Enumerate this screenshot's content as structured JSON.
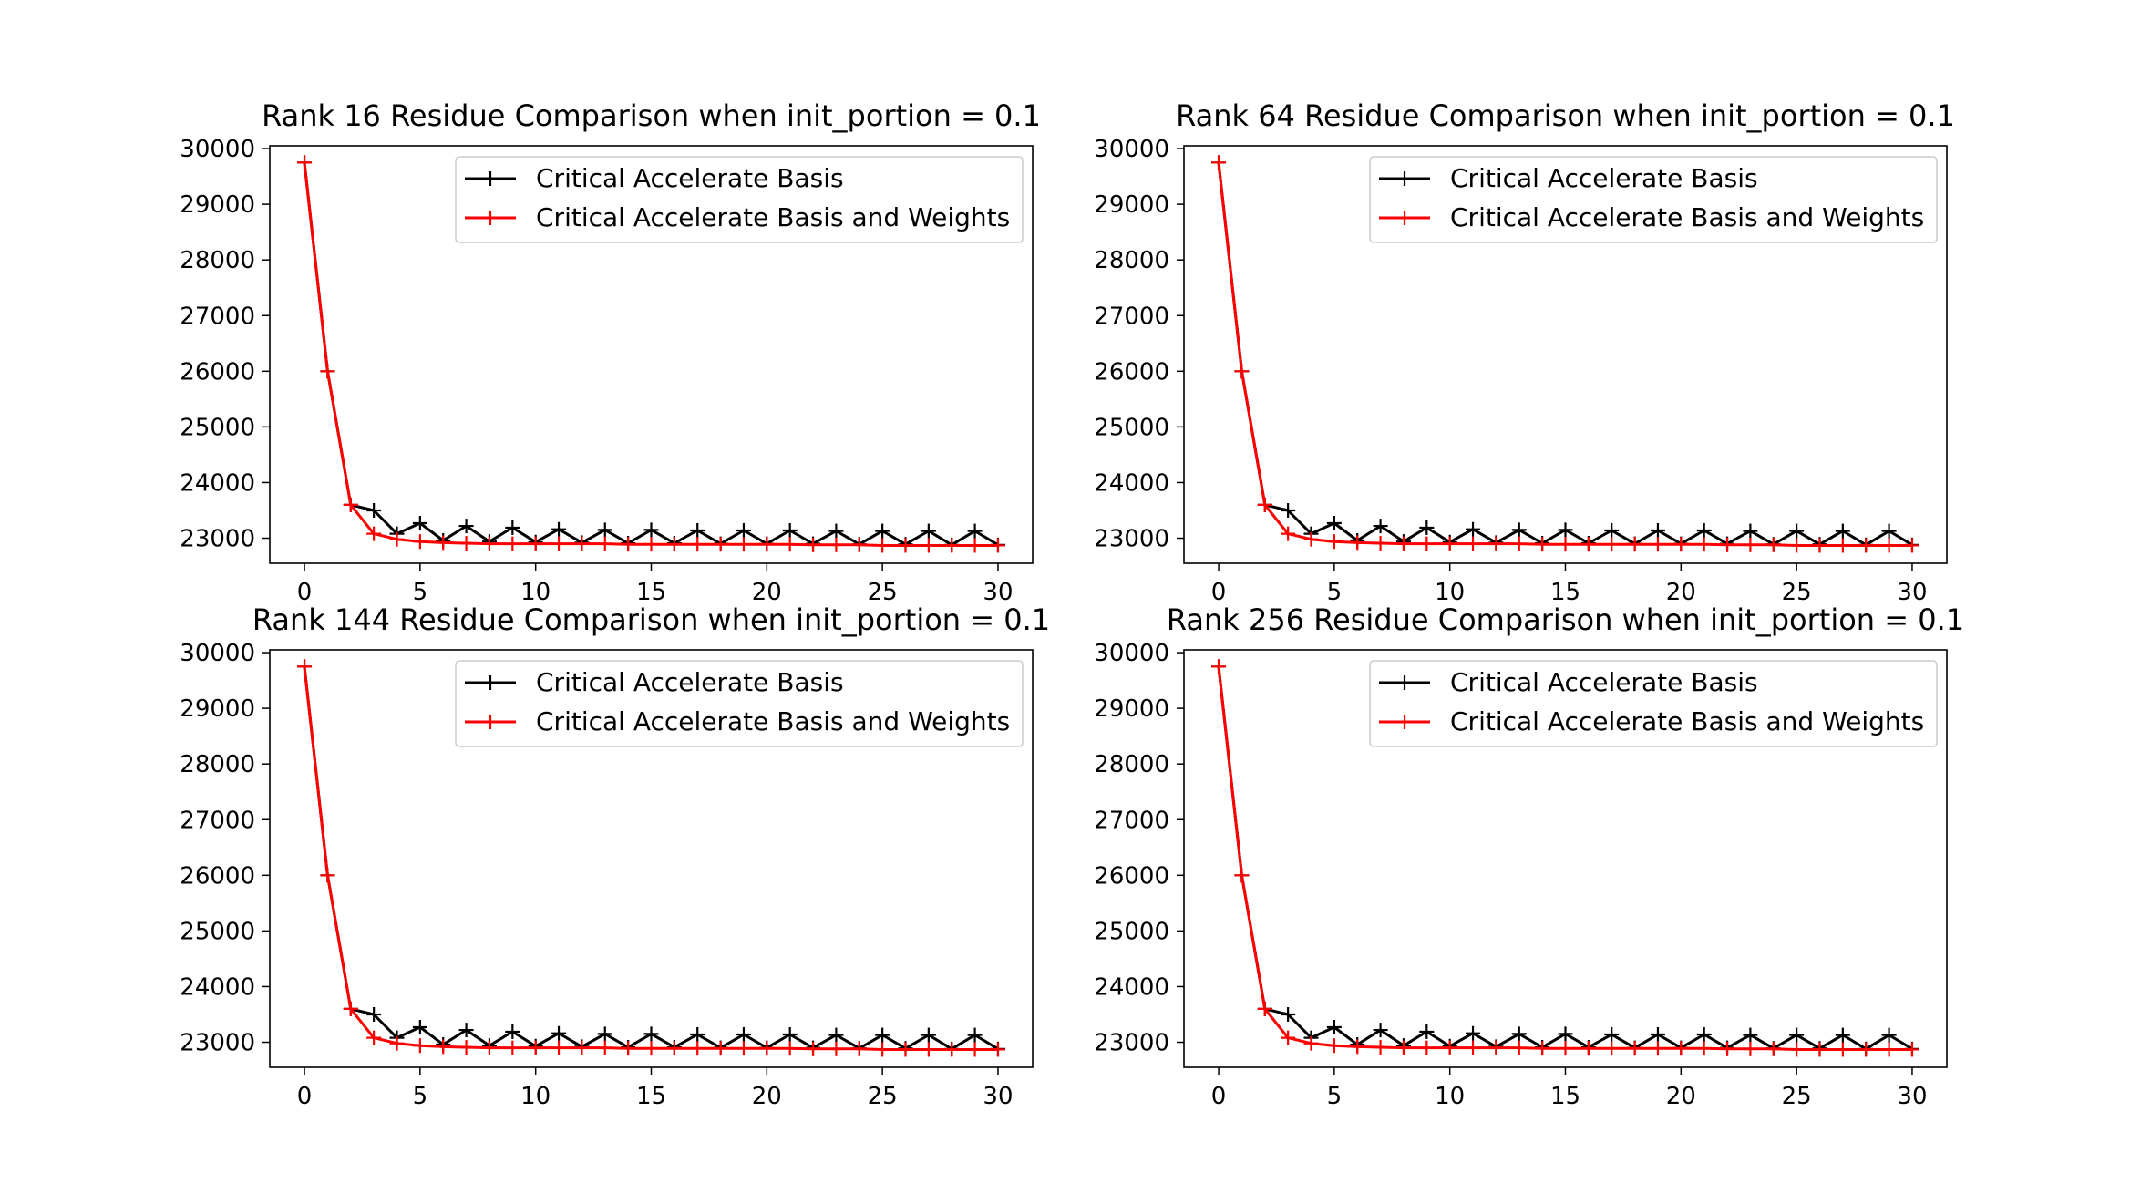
{
  "colors": {
    "series_black": "#000000",
    "series_red": "#ff0000",
    "axes": "#000000",
    "background": "#ffffff"
  },
  "chart_data": [
    {
      "type": "line",
      "title": "Rank 16 Residue Comparison when init_portion = 0.1",
      "xlabel": "",
      "ylabel": "",
      "xlim": [
        -1.5,
        31.5
      ],
      "ylim": [
        22550,
        30050
      ],
      "xticks": [
        0,
        5,
        10,
        15,
        20,
        25,
        30
      ],
      "yticks": [
        23000,
        24000,
        25000,
        26000,
        27000,
        28000,
        29000,
        30000
      ],
      "legend": "upper right",
      "grid": false,
      "x": [
        0,
        1,
        2,
        3,
        4,
        5,
        6,
        7,
        8,
        9,
        10,
        11,
        12,
        13,
        14,
        15,
        16,
        17,
        18,
        19,
        20,
        21,
        22,
        23,
        24,
        25,
        26,
        27,
        28,
        29,
        30
      ],
      "series": [
        {
          "name": "Critical Accelerate Basis",
          "color": "#000000",
          "marker": "+",
          "values": [
            29750,
            26000,
            23600,
            23500,
            23080,
            23270,
            22960,
            23220,
            22940,
            23190,
            22930,
            23160,
            22920,
            23150,
            22910,
            23150,
            22910,
            23140,
            22900,
            23140,
            22900,
            23140,
            22900,
            23130,
            22890,
            23130,
            22890,
            23130,
            22880,
            23130,
            22880
          ]
        },
        {
          "name": "Critical Accelerate Basis and Weights",
          "color": "#ff0000",
          "marker": "+",
          "values": [
            29750,
            26000,
            23600,
            23080,
            22980,
            22940,
            22920,
            22910,
            22900,
            22900,
            22900,
            22900,
            22900,
            22900,
            22890,
            22890,
            22890,
            22890,
            22890,
            22890,
            22890,
            22890,
            22880,
            22880,
            22880,
            22870,
            22870,
            22870,
            22870,
            22870,
            22870
          ]
        }
      ]
    },
    {
      "type": "line",
      "title": "Rank 64 Residue Comparison when init_portion = 0.1",
      "xlabel": "",
      "ylabel": "",
      "xlim": [
        -1.5,
        31.5
      ],
      "ylim": [
        22550,
        30050
      ],
      "xticks": [
        0,
        5,
        10,
        15,
        20,
        25,
        30
      ],
      "yticks": [
        23000,
        24000,
        25000,
        26000,
        27000,
        28000,
        29000,
        30000
      ],
      "legend": "upper right",
      "grid": false,
      "x": [
        0,
        1,
        2,
        3,
        4,
        5,
        6,
        7,
        8,
        9,
        10,
        11,
        12,
        13,
        14,
        15,
        16,
        17,
        18,
        19,
        20,
        21,
        22,
        23,
        24,
        25,
        26,
        27,
        28,
        29,
        30
      ],
      "series": [
        {
          "name": "Critical Accelerate Basis",
          "color": "#000000",
          "marker": "+",
          "values": [
            29750,
            26000,
            23600,
            23500,
            23080,
            23270,
            22960,
            23220,
            22940,
            23190,
            22930,
            23160,
            22920,
            23150,
            22910,
            23150,
            22910,
            23140,
            22900,
            23140,
            22900,
            23140,
            22900,
            23130,
            22890,
            23130,
            22890,
            23130,
            22880,
            23130,
            22880
          ]
        },
        {
          "name": "Critical Accelerate Basis and Weights",
          "color": "#ff0000",
          "marker": "+",
          "values": [
            29750,
            26000,
            23600,
            23080,
            22980,
            22940,
            22920,
            22910,
            22900,
            22900,
            22900,
            22900,
            22900,
            22900,
            22890,
            22890,
            22890,
            22890,
            22890,
            22890,
            22890,
            22890,
            22880,
            22880,
            22880,
            22870,
            22870,
            22870,
            22870,
            22870,
            22870
          ]
        }
      ]
    },
    {
      "type": "line",
      "title": "Rank 144 Residue Comparison when init_portion = 0.1",
      "xlabel": "",
      "ylabel": "",
      "xlim": [
        -1.5,
        31.5
      ],
      "ylim": [
        22550,
        30050
      ],
      "xticks": [
        0,
        5,
        10,
        15,
        20,
        25,
        30
      ],
      "yticks": [
        23000,
        24000,
        25000,
        26000,
        27000,
        28000,
        29000,
        30000
      ],
      "legend": "upper right",
      "grid": false,
      "x": [
        0,
        1,
        2,
        3,
        4,
        5,
        6,
        7,
        8,
        9,
        10,
        11,
        12,
        13,
        14,
        15,
        16,
        17,
        18,
        19,
        20,
        21,
        22,
        23,
        24,
        25,
        26,
        27,
        28,
        29,
        30
      ],
      "series": [
        {
          "name": "Critical Accelerate Basis",
          "color": "#000000",
          "marker": "+",
          "values": [
            29750,
            26000,
            23600,
            23500,
            23080,
            23270,
            22960,
            23220,
            22940,
            23190,
            22930,
            23160,
            22920,
            23150,
            22910,
            23150,
            22910,
            23140,
            22900,
            23140,
            22900,
            23140,
            22900,
            23130,
            22890,
            23130,
            22890,
            23130,
            22880,
            23130,
            22880
          ]
        },
        {
          "name": "Critical Accelerate Basis and Weights",
          "color": "#ff0000",
          "marker": "+",
          "values": [
            29750,
            26000,
            23600,
            23080,
            22980,
            22940,
            22920,
            22910,
            22900,
            22900,
            22900,
            22900,
            22900,
            22900,
            22890,
            22890,
            22890,
            22890,
            22890,
            22890,
            22890,
            22890,
            22880,
            22880,
            22880,
            22870,
            22870,
            22870,
            22870,
            22870,
            22870
          ]
        }
      ]
    },
    {
      "type": "line",
      "title": "Rank 256 Residue Comparison when init_portion = 0.1",
      "xlabel": "",
      "ylabel": "",
      "xlim": [
        -1.5,
        31.5
      ],
      "ylim": [
        22550,
        30050
      ],
      "xticks": [
        0,
        5,
        10,
        15,
        20,
        25,
        30
      ],
      "yticks": [
        23000,
        24000,
        25000,
        26000,
        27000,
        28000,
        29000,
        30000
      ],
      "legend": "upper right",
      "grid": false,
      "x": [
        0,
        1,
        2,
        3,
        4,
        5,
        6,
        7,
        8,
        9,
        10,
        11,
        12,
        13,
        14,
        15,
        16,
        17,
        18,
        19,
        20,
        21,
        22,
        23,
        24,
        25,
        26,
        27,
        28,
        29,
        30
      ],
      "series": [
        {
          "name": "Critical Accelerate Basis",
          "color": "#000000",
          "marker": "+",
          "values": [
            29750,
            26000,
            23600,
            23500,
            23080,
            23270,
            22960,
            23220,
            22940,
            23190,
            22930,
            23160,
            22920,
            23150,
            22910,
            23150,
            22910,
            23140,
            22900,
            23140,
            22900,
            23140,
            22900,
            23130,
            22890,
            23130,
            22890,
            23130,
            22880,
            23130,
            22880
          ]
        },
        {
          "name": "Critical Accelerate Basis and Weights",
          "color": "#ff0000",
          "marker": "+",
          "values": [
            29750,
            26000,
            23600,
            23080,
            22980,
            22940,
            22920,
            22910,
            22900,
            22900,
            22900,
            22900,
            22900,
            22900,
            22890,
            22890,
            22890,
            22890,
            22890,
            22890,
            22890,
            22890,
            22880,
            22880,
            22880,
            22870,
            22870,
            22870,
            22870,
            22870,
            22870
          ]
        }
      ]
    }
  ]
}
